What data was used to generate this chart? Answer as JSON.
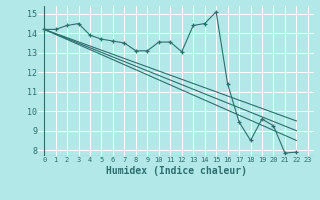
{
  "xlabel": "Humidex (Indice chaleur)",
  "background_color": "#b2e8e8",
  "grid_color": "#ffffff",
  "line_color": "#2e6e6e",
  "xlim": [
    -0.5,
    23.5
  ],
  "ylim": [
    7.7,
    15.4
  ],
  "xticks": [
    0,
    1,
    2,
    3,
    4,
    5,
    6,
    7,
    8,
    9,
    10,
    11,
    12,
    13,
    14,
    15,
    16,
    17,
    18,
    19,
    20,
    21,
    22,
    23
  ],
  "yticks": [
    8,
    9,
    10,
    11,
    12,
    13,
    14,
    15
  ],
  "series0_x": [
    0,
    1,
    2,
    3,
    4,
    5,
    6,
    7,
    8,
    9,
    10,
    11,
    12,
    13,
    14,
    15,
    16,
    17,
    18,
    19,
    20,
    21,
    22
  ],
  "series0_y": [
    14.2,
    14.2,
    14.4,
    14.5,
    13.9,
    13.7,
    13.6,
    13.5,
    13.1,
    13.1,
    13.55,
    13.55,
    13.05,
    14.4,
    14.5,
    15.1,
    11.4,
    9.45,
    8.5,
    9.6,
    9.25,
    7.85,
    7.9
  ],
  "series1_x": [
    0,
    22
  ],
  "series1_y": [
    14.2,
    8.5
  ],
  "series2_x": [
    0,
    22
  ],
  "series2_y": [
    14.2,
    9.0
  ],
  "series3_x": [
    0,
    22
  ],
  "series3_y": [
    14.2,
    9.5
  ]
}
